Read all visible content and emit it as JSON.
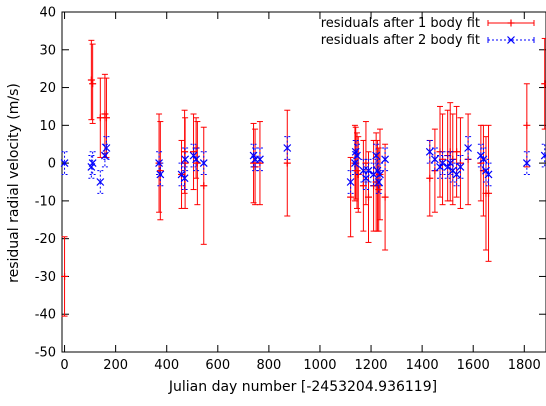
{
  "chart_data": {
    "type": "scatter",
    "xlabel": "Julian day number [-2453204.936119]",
    "ylabel": "residual radial velocity (m/s)",
    "xlim": [
      -10,
      1885
    ],
    "ylim": [
      -50,
      40
    ],
    "xticks": [
      0,
      200,
      400,
      600,
      800,
      1000,
      1200,
      1400,
      1600,
      1800
    ],
    "yticks": [
      -50,
      -40,
      -30,
      -20,
      -10,
      0,
      10,
      20,
      30,
      40
    ],
    "grid": false,
    "legend_position": "top-right",
    "series": [
      {
        "name": "residuals after 1 body fit",
        "color": "#ff0000",
        "marker": "plus",
        "style": "errorbars",
        "points": [
          [
            0,
            -30,
            10.5
          ],
          [
            105,
            22,
            10.5
          ],
          [
            110,
            21,
            10.5
          ],
          [
            140,
            12,
            10.5
          ],
          [
            158,
            13,
            10.5
          ],
          [
            164,
            12,
            10.5
          ],
          [
            370,
            0,
            13
          ],
          [
            375,
            -2,
            13
          ],
          [
            458,
            -3,
            9
          ],
          [
            470,
            3,
            11
          ],
          [
            472,
            0,
            12
          ],
          [
            505,
            3,
            10
          ],
          [
            515,
            4,
            8
          ],
          [
            520,
            0,
            11
          ],
          [
            545,
            -6,
            15.5
          ],
          [
            740,
            0,
            10.5
          ],
          [
            746,
            -1,
            10
          ],
          [
            765,
            0,
            11
          ],
          [
            872,
            0,
            14
          ],
          [
            1120,
            -9,
            10.5
          ],
          [
            1137,
            0,
            10
          ],
          [
            1140,
            0,
            9.5
          ],
          [
            1145,
            -2,
            10
          ],
          [
            1150,
            -3,
            10
          ],
          [
            1170,
            -6,
            12
          ],
          [
            1180,
            0,
            11
          ],
          [
            1190,
            -9,
            12
          ],
          [
            1210,
            -6,
            12
          ],
          [
            1220,
            -5,
            13
          ],
          [
            1225,
            -6,
            12
          ],
          [
            1230,
            -7,
            11
          ],
          [
            1235,
            -3,
            12
          ],
          [
            1255,
            -9,
            14
          ],
          [
            1430,
            -4,
            10
          ],
          [
            1450,
            -2,
            11
          ],
          [
            1470,
            3,
            12
          ],
          [
            1480,
            1,
            12
          ],
          [
            1500,
            2,
            12
          ],
          [
            1510,
            3,
            13
          ],
          [
            1520,
            1,
            12
          ],
          [
            1535,
            3,
            12
          ],
          [
            1550,
            0,
            12
          ],
          [
            1580,
            1,
            12
          ],
          [
            1630,
            0,
            10
          ],
          [
            1640,
            -2,
            12
          ],
          [
            1650,
            -8,
            15
          ],
          [
            1660,
            -8,
            18
          ],
          [
            1810,
            10,
            11
          ],
          [
            1880,
            21,
            12
          ]
        ]
      },
      {
        "name": "residuals after 2 body fit",
        "color": "#0000ff",
        "marker": "cross",
        "style": "errorbars",
        "points": [
          [
            0,
            0,
            3
          ],
          [
            105,
            -1,
            3
          ],
          [
            110,
            0,
            3
          ],
          [
            140,
            -5,
            3
          ],
          [
            158,
            2,
            3
          ],
          [
            164,
            4,
            3
          ],
          [
            370,
            0,
            3
          ],
          [
            375,
            -3,
            3
          ],
          [
            458,
            -3,
            3
          ],
          [
            470,
            -4,
            3
          ],
          [
            472,
            1,
            3
          ],
          [
            505,
            2,
            3
          ],
          [
            515,
            1,
            3
          ],
          [
            545,
            0,
            3
          ],
          [
            740,
            2,
            3
          ],
          [
            746,
            1,
            3
          ],
          [
            765,
            1,
            3
          ],
          [
            872,
            4,
            3
          ],
          [
            1120,
            -5,
            3
          ],
          [
            1137,
            0,
            3
          ],
          [
            1140,
            3,
            3
          ],
          [
            1145,
            2,
            3
          ],
          [
            1170,
            -2,
            3
          ],
          [
            1180,
            -4,
            3
          ],
          [
            1190,
            -2,
            3
          ],
          [
            1210,
            -3,
            3
          ],
          [
            1220,
            2,
            3
          ],
          [
            1225,
            -2,
            3
          ],
          [
            1230,
            -5,
            3
          ],
          [
            1235,
            -3,
            3
          ],
          [
            1255,
            1,
            3
          ],
          [
            1430,
            3,
            3
          ],
          [
            1450,
            1,
            3
          ],
          [
            1470,
            -1,
            3
          ],
          [
            1480,
            0,
            3
          ],
          [
            1500,
            -1,
            3
          ],
          [
            1510,
            0,
            3
          ],
          [
            1520,
            -2,
            3
          ],
          [
            1535,
            -3,
            3
          ],
          [
            1550,
            -1,
            3
          ],
          [
            1580,
            4,
            3
          ],
          [
            1630,
            2,
            3
          ],
          [
            1640,
            1,
            3
          ],
          [
            1650,
            -2,
            3
          ],
          [
            1660,
            -3,
            3
          ],
          [
            1810,
            0,
            3
          ],
          [
            1880,
            2,
            3
          ]
        ]
      }
    ]
  }
}
